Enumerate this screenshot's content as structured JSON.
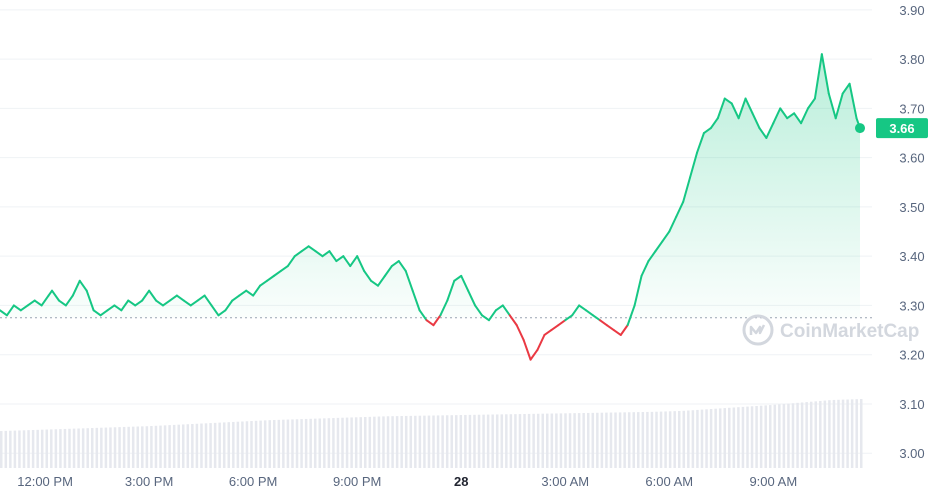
{
  "chart_data": {
    "type": "area",
    "watermark": "CoinMarketCap",
    "current_price": "3.66",
    "baseline": 3.275,
    "ylim": [
      2.97,
      3.92
    ],
    "y_ticks": [
      "3.00",
      "3.10",
      "3.20",
      "3.30",
      "3.40",
      "3.50",
      "3.60",
      "3.70",
      "3.80",
      "3.90"
    ],
    "x_ticks": [
      {
        "label": "12:00 PM",
        "bold": false
      },
      {
        "label": "3:00 PM",
        "bold": false
      },
      {
        "label": "6:00 PM",
        "bold": false
      },
      {
        "label": "9:00 PM",
        "bold": false
      },
      {
        "label": "28",
        "bold": true
      },
      {
        "label": "3:00 AM",
        "bold": false
      },
      {
        "label": "6:00 AM",
        "bold": false
      },
      {
        "label": "9:00 AM",
        "bold": false
      }
    ],
    "x_unit": "hours",
    "xlim": [
      10.7,
      35.5
    ],
    "x_tick_values": [
      12,
      15,
      18,
      21,
      24,
      27,
      30,
      33
    ],
    "colors": {
      "up": "#16c784",
      "down": "#ea3943",
      "fill_top": "#c8f0dd",
      "volume": "#e6e8ee",
      "grid": "#eff2f5",
      "axis_text": "#58667e"
    },
    "series": [
      {
        "values": [
          [
            10.7,
            3.29
          ],
          [
            10.9,
            3.28
          ],
          [
            11.1,
            3.3
          ],
          [
            11.3,
            3.29
          ],
          [
            11.5,
            3.3
          ],
          [
            11.7,
            3.31
          ],
          [
            11.9,
            3.3
          ],
          [
            12.1,
            3.32
          ],
          [
            12.2,
            3.33
          ],
          [
            12.4,
            3.31
          ],
          [
            12.6,
            3.3
          ],
          [
            12.8,
            3.32
          ],
          [
            13.0,
            3.35
          ],
          [
            13.2,
            3.33
          ],
          [
            13.4,
            3.29
          ],
          [
            13.6,
            3.28
          ],
          [
            13.8,
            3.29
          ],
          [
            14.0,
            3.3
          ],
          [
            14.2,
            3.29
          ],
          [
            14.4,
            3.31
          ],
          [
            14.6,
            3.3
          ],
          [
            14.8,
            3.31
          ],
          [
            15.0,
            3.33
          ],
          [
            15.2,
            3.31
          ],
          [
            15.4,
            3.3
          ],
          [
            15.6,
            3.31
          ],
          [
            15.8,
            3.32
          ],
          [
            16.0,
            3.31
          ],
          [
            16.2,
            3.3
          ],
          [
            16.4,
            3.31
          ],
          [
            16.6,
            3.32
          ],
          [
            16.8,
            3.3
          ],
          [
            17.0,
            3.28
          ],
          [
            17.2,
            3.29
          ],
          [
            17.4,
            3.31
          ],
          [
            17.6,
            3.32
          ],
          [
            17.8,
            3.33
          ],
          [
            18.0,
            3.32
          ],
          [
            18.2,
            3.34
          ],
          [
            18.4,
            3.35
          ],
          [
            18.6,
            3.36
          ],
          [
            18.8,
            3.37
          ],
          [
            19.0,
            3.38
          ],
          [
            19.2,
            3.4
          ],
          [
            19.4,
            3.41
          ],
          [
            19.6,
            3.42
          ],
          [
            19.8,
            3.41
          ],
          [
            20.0,
            3.4
          ],
          [
            20.2,
            3.41
          ],
          [
            20.4,
            3.39
          ],
          [
            20.6,
            3.4
          ],
          [
            20.8,
            3.38
          ],
          [
            21.0,
            3.4
          ],
          [
            21.2,
            3.37
          ],
          [
            21.4,
            3.35
          ],
          [
            21.6,
            3.34
          ],
          [
            21.8,
            3.36
          ],
          [
            22.0,
            3.38
          ],
          [
            22.2,
            3.39
          ],
          [
            22.4,
            3.37
          ],
          [
            22.6,
            3.33
          ],
          [
            22.8,
            3.29
          ],
          [
            23.0,
            3.27
          ],
          [
            23.2,
            3.26
          ],
          [
            23.4,
            3.28
          ],
          [
            23.6,
            3.31
          ],
          [
            23.8,
            3.35
          ],
          [
            24.0,
            3.36
          ],
          [
            24.2,
            3.33
          ],
          [
            24.4,
            3.3
          ],
          [
            24.6,
            3.28
          ],
          [
            24.8,
            3.27
          ],
          [
            25.0,
            3.29
          ],
          [
            25.2,
            3.3
          ],
          [
            25.4,
            3.28
          ],
          [
            25.6,
            3.26
          ],
          [
            25.8,
            3.23
          ],
          [
            26.0,
            3.19
          ],
          [
            26.2,
            3.21
          ],
          [
            26.4,
            3.24
          ],
          [
            26.6,
            3.25
          ],
          [
            26.8,
            3.26
          ],
          [
            27.0,
            3.27
          ],
          [
            27.2,
            3.28
          ],
          [
            27.4,
            3.3
          ],
          [
            27.6,
            3.29
          ],
          [
            27.8,
            3.28
          ],
          [
            28.0,
            3.27
          ],
          [
            28.2,
            3.26
          ],
          [
            28.4,
            3.25
          ],
          [
            28.6,
            3.24
          ],
          [
            28.8,
            3.26
          ],
          [
            29.0,
            3.3
          ],
          [
            29.2,
            3.36
          ],
          [
            29.4,
            3.39
          ],
          [
            29.6,
            3.41
          ],
          [
            29.8,
            3.43
          ],
          [
            30.0,
            3.45
          ],
          [
            30.2,
            3.48
          ],
          [
            30.4,
            3.51
          ],
          [
            30.6,
            3.56
          ],
          [
            30.8,
            3.61
          ],
          [
            31.0,
            3.65
          ],
          [
            31.2,
            3.66
          ],
          [
            31.4,
            3.68
          ],
          [
            31.6,
            3.72
          ],
          [
            31.8,
            3.71
          ],
          [
            32.0,
            3.68
          ],
          [
            32.2,
            3.72
          ],
          [
            32.4,
            3.69
          ],
          [
            32.6,
            3.66
          ],
          [
            32.8,
            3.64
          ],
          [
            33.0,
            3.67
          ],
          [
            33.2,
            3.7
          ],
          [
            33.4,
            3.68
          ],
          [
            33.6,
            3.69
          ],
          [
            33.8,
            3.67
          ],
          [
            34.0,
            3.7
          ],
          [
            34.2,
            3.72
          ],
          [
            34.4,
            3.81
          ],
          [
            34.6,
            3.73
          ],
          [
            34.8,
            3.68
          ],
          [
            35.0,
            3.73
          ],
          [
            35.2,
            3.75
          ],
          [
            35.4,
            3.68
          ],
          [
            35.5,
            3.66
          ]
        ]
      }
    ],
    "volume": {
      "x_range": [
        10.7,
        35.5
      ],
      "values": [
        3.045,
        3.047,
        3.049,
        3.051,
        3.053,
        3.055,
        3.058,
        3.061,
        3.064,
        3.067,
        3.069,
        3.071,
        3.073,
        3.075,
        3.076,
        3.077,
        3.078,
        3.079,
        3.08,
        3.081,
        3.082,
        3.083,
        3.084,
        3.086,
        3.09,
        3.094,
        3.098,
        3.103,
        3.108,
        3.11
      ]
    }
  }
}
